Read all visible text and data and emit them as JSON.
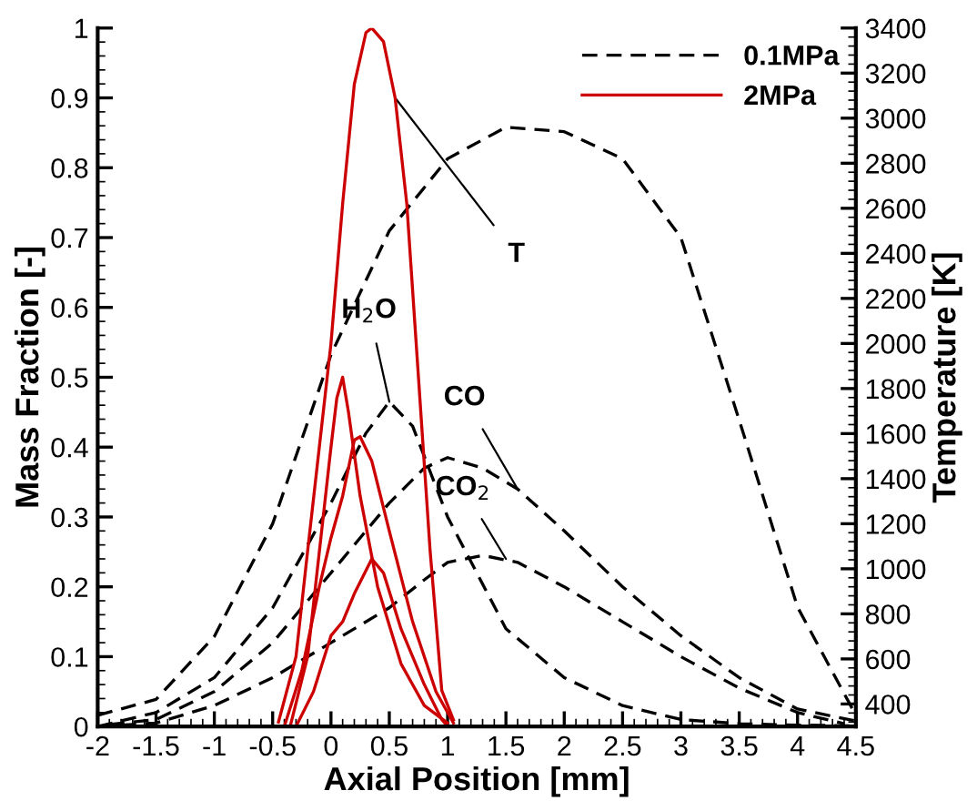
{
  "chart_data": {
    "type": "line",
    "xlabel": "Axial Position [mm]",
    "ylabel": "Mass Fraction [-]",
    "y2label": "Temperature [K]",
    "xlim": [
      -2,
      4.5
    ],
    "xticks": [
      -2,
      -1.5,
      -1,
      -0.5,
      0,
      0.5,
      1,
      1.5,
      2,
      2.5,
      3,
      3.5,
      4,
      4.5
    ],
    "ylim": [
      0,
      1
    ],
    "yticks": [
      0,
      0.1,
      0.2,
      0.3,
      0.4,
      0.5,
      0.6,
      0.7,
      0.8,
      0.9,
      1
    ],
    "y2lim": [
      300,
      3400
    ],
    "y2ticks": [
      400,
      600,
      800,
      1000,
      1200,
      1400,
      1600,
      1800,
      2000,
      2200,
      2400,
      2600,
      2800,
      3000,
      3200,
      3400
    ],
    "grid": false,
    "legend": "top right",
    "marker": "none",
    "series": [
      {
        "name": "0.1MPa",
        "color": "#000000",
        "line_style": "dashed",
        "axis": "y2",
        "x": [
          -2,
          -1.5,
          -1,
          -0.5,
          0,
          0.5,
          1,
          1.5,
          2,
          2.5,
          3,
          3.5,
          4,
          4.5
        ],
        "values": [
          350,
          420,
          700,
          1200,
          1950,
          2500,
          2820,
          2960,
          2940,
          2820,
          2470,
          1660,
          830,
          350
        ]
      },
      {
        "color": "#000000",
        "line_style": "dashed",
        "x": [
          -2,
          -1.5,
          -1,
          -0.5,
          0,
          0.3,
          0.5,
          0.7,
          1,
          1.5,
          2,
          2.5,
          3,
          3.5,
          4,
          4.5
        ],
        "values": [
          0,
          0.02,
          0.07,
          0.17,
          0.32,
          0.42,
          0.465,
          0.43,
          0.3,
          0.14,
          0.07,
          0.03,
          0.01,
          0.004,
          0.002,
          0.001
        ]
      },
      {
        "color": "#000000",
        "line_style": "dashed",
        "x": [
          -1.9,
          -1.5,
          -1,
          -0.5,
          0,
          0.5,
          0.8,
          1,
          1.3,
          1.6,
          2,
          2.5,
          3,
          3.5,
          4,
          4.5
        ],
        "values": [
          0.003,
          0.01,
          0.05,
          0.12,
          0.22,
          0.32,
          0.37,
          0.385,
          0.37,
          0.34,
          0.28,
          0.2,
          0.13,
          0.07,
          0.025,
          0.008
        ]
      },
      {
        "color": "#000000",
        "line_style": "dashed",
        "x": [
          -1.8,
          -1.5,
          -1,
          -0.5,
          0,
          0.5,
          0.8,
          1,
          1.3,
          1.6,
          2,
          2.5,
          3,
          3.5,
          4,
          4.4
        ],
        "values": [
          0.002,
          0.005,
          0.03,
          0.07,
          0.12,
          0.17,
          0.21,
          0.235,
          0.245,
          0.235,
          0.2,
          0.15,
          0.1,
          0.055,
          0.02,
          0.004
        ]
      },
      {
        "name": "2MPa",
        "color": "#cc0000",
        "line_style": "solid",
        "axis": "y2",
        "x": [
          -0.45,
          -0.3,
          -0.2,
          -0.1,
          0,
          0.1,
          0.2,
          0.3,
          0.35,
          0.45,
          0.55,
          0.65,
          0.75,
          0.85,
          0.95,
          1.05
        ],
        "values": [
          320,
          610,
          1080,
          1540,
          2000,
          2620,
          3150,
          3380,
          3400,
          3340,
          3090,
          2620,
          1850,
          1080,
          460,
          330
        ]
      },
      {
        "color": "#cc0000",
        "line_style": "solid",
        "x": [
          -0.35,
          -0.2,
          -0.1,
          0,
          0.05,
          0.1,
          0.15,
          0.25,
          0.4,
          0.6,
          0.8,
          1.0
        ],
        "values": [
          0,
          0.1,
          0.25,
          0.4,
          0.47,
          0.5,
          0.45,
          0.33,
          0.2,
          0.09,
          0.03,
          0.005
        ]
      },
      {
        "color": "#cc0000",
        "line_style": "solid",
        "x": [
          -0.4,
          -0.25,
          -0.1,
          0,
          0.1,
          0.2,
          0.25,
          0.35,
          0.5,
          0.7,
          0.9,
          1.05
        ],
        "values": [
          0,
          0.08,
          0.2,
          0.27,
          0.33,
          0.41,
          0.415,
          0.38,
          0.28,
          0.15,
          0.05,
          0.005
        ]
      },
      {
        "color": "#cc0000",
        "line_style": "solid",
        "x": [
          -0.3,
          -0.15,
          0,
          0.1,
          0.2,
          0.35,
          0.45,
          0.6,
          0.8,
          0.95,
          1.0
        ],
        "values": [
          0,
          0.05,
          0.13,
          0.15,
          0.19,
          0.24,
          0.22,
          0.14,
          0.06,
          0.01,
          0
        ]
      }
    ],
    "annotations": [
      {
        "text": "T",
        "x": 0.55,
        "y": 0.9
      },
      {
        "text": "H$_{2}$O",
        "x": 0.5,
        "y": 0.465
      },
      {
        "text": "CO",
        "x": 1.6,
        "y": 0.34
      },
      {
        "text": "CO$_{2}$",
        "x": 1.5,
        "y": 0.24
      }
    ]
  }
}
